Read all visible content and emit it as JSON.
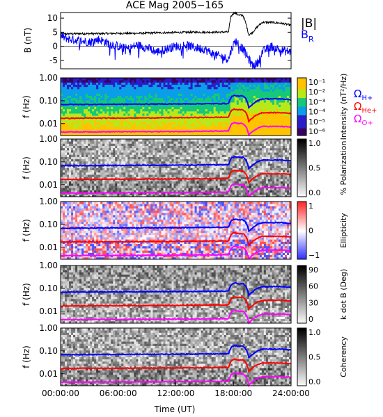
{
  "title": "ACE Mag 2005−165",
  "xlabel": "Time (UT)",
  "x_ticks": [
    "00:00:00",
    "06:00:00",
    "12:00:00",
    "18:00:00",
    "24:00:00"
  ],
  "colors": {
    "B_total": "#000000",
    "B_R": "#0000ff",
    "omega_H": "#0000ff",
    "omega_He": "#ff0000",
    "omega_O": "#ff00ff"
  },
  "chart_data": [
    {
      "type": "line",
      "panel": "magnetic field",
      "ylabel": "B (nT)",
      "ylim": [
        -8,
        12
      ],
      "y_ticks": [
        "10",
        "5",
        "0",
        "-5"
      ],
      "xlim": [
        0,
        24
      ],
      "legend": [
        {
          "name": "|B|",
          "color": "#000000"
        },
        {
          "name": "B",
          "subscript": "R",
          "color": "#0000ff"
        }
      ],
      "series": [
        {
          "name": "|B|",
          "x": [
            0,
            2,
            4,
            6,
            8,
            10,
            12,
            14,
            16,
            17.5,
            17.7,
            18.1,
            18.6,
            19.0,
            19.3,
            19.6,
            20.0,
            20.5,
            21,
            22,
            23,
            24
          ],
          "y": [
            4.4,
            4.5,
            4.5,
            4.6,
            4.6,
            4.8,
            4.9,
            5.0,
            5.0,
            5.1,
            10.5,
            12.0,
            11.0,
            11.0,
            8.0,
            4.0,
            5.0,
            7.0,
            8.5,
            8.5,
            8.2,
            7.5
          ]
        },
        {
          "name": "B_R",
          "x": [
            0,
            1,
            2,
            3,
            4,
            5,
            6,
            7,
            8,
            9,
            10,
            11,
            12,
            13,
            14,
            15,
            16,
            17,
            17.5,
            17.8,
            18.2,
            18.6,
            19.0,
            19.5,
            20.0,
            20.5,
            21,
            22,
            23,
            24
          ],
          "y": [
            3.5,
            2.5,
            2.0,
            1.5,
            2.5,
            1.0,
            0.0,
            -1.0,
            0.5,
            -0.5,
            -2.0,
            -1.0,
            0.0,
            0.5,
            -0.5,
            -1.0,
            -3.0,
            -4.0,
            -4.5,
            -1.0,
            2.0,
            0.5,
            -1.0,
            -4.0,
            -7.0,
            -6.0,
            -2.0,
            0.0,
            -1.5,
            -2.0
          ]
        }
      ]
    },
    {
      "type": "heatmap",
      "panel": "intensity",
      "ylabel": "f (Hz)",
      "y_scale": "log",
      "ylim": [
        0.003,
        1.0
      ],
      "y_ticks": [
        "1.00",
        "0.10",
        "0.01"
      ],
      "colorbar_label": "Intensity (nT²/Hz)",
      "colorbar_ticks": [
        "10⁻¹",
        "10⁻²",
        "10⁻³",
        "10⁻⁴",
        "10⁻⁵",
        "10⁻⁶"
      ],
      "legend": [
        {
          "name": "Ω",
          "subscript": "H+",
          "color": "#0000ff"
        },
        {
          "name": "Ω",
          "subscript": "He+",
          "color": "#ff0000"
        },
        {
          "name": "Ω",
          "subscript": "O+",
          "color": "#ff00ff"
        }
      ]
    },
    {
      "type": "heatmap",
      "panel": "polarization",
      "ylabel": "f (Hz)",
      "y_scale": "log",
      "ylim": [
        0.003,
        1.0
      ],
      "y_ticks": [
        "1.00",
        "0.10",
        "0.01"
      ],
      "colorbar_label": "% Polarization",
      "colorbar_ticks": [
        "1.0",
        "0.5",
        "0.0"
      ]
    },
    {
      "type": "heatmap",
      "panel": "ellipticity",
      "ylabel": "f (Hz)",
      "y_scale": "log",
      "ylim": [
        0.003,
        1.0
      ],
      "y_ticks": [
        "1.00",
        "0.10",
        "0.01"
      ],
      "colorbar_label": "Ellipticity",
      "colorbar_ticks": [
        "1",
        "0",
        "−1"
      ]
    },
    {
      "type": "heatmap",
      "panel": "wave normal angle",
      "ylabel": "f (Hz)",
      "y_scale": "log",
      "ylim": [
        0.003,
        1.0
      ],
      "y_ticks": [
        "1.00",
        "0.10",
        "0.01"
      ],
      "colorbar_label": "k dot B (Deg)",
      "colorbar_ticks": [
        "90",
        "60",
        "30",
        "0"
      ]
    },
    {
      "type": "heatmap",
      "panel": "coherency",
      "ylabel": "f (Hz)",
      "y_scale": "log",
      "ylim": [
        0.003,
        1.0
      ],
      "y_ticks": [
        "1.00",
        "0.10",
        "0.01"
      ],
      "colorbar_label": "Coherency",
      "colorbar_ticks": [
        "1.0",
        "0.5",
        "0.0"
      ]
    },
    {
      "type": "line",
      "panel": "gyrofrequency overlays (drawn on every spectrogram panel)",
      "xlim": [
        0,
        24
      ],
      "y_scale": "log",
      "series": [
        {
          "name": "ΩH+",
          "x": [
            0,
            6,
            12,
            17.5,
            17.8,
            18.1,
            18.5,
            19.0,
            19.3,
            19.6,
            20.0,
            20.5,
            21,
            22,
            23,
            24
          ],
          "y": [
            0.068,
            0.07,
            0.072,
            0.075,
            0.15,
            0.17,
            0.16,
            0.16,
            0.12,
            0.05,
            0.07,
            0.1,
            0.12,
            0.12,
            0.12,
            0.11
          ]
        },
        {
          "name": "ΩHe+",
          "x": [
            0,
            6,
            12,
            17.5,
            17.8,
            18.1,
            18.5,
            19.0,
            19.3,
            19.6,
            20.0,
            20.5,
            21,
            22,
            23,
            24
          ],
          "y": [
            0.017,
            0.0175,
            0.018,
            0.019,
            0.038,
            0.043,
            0.04,
            0.04,
            0.03,
            0.0125,
            0.018,
            0.025,
            0.03,
            0.03,
            0.03,
            0.028
          ]
        },
        {
          "name": "ΩO+",
          "x": [
            0,
            6,
            12,
            17.5,
            17.8,
            18.1,
            18.5,
            19.0,
            19.3,
            19.6,
            20.0,
            20.5,
            21,
            22,
            23,
            24
          ],
          "y": [
            0.0043,
            0.0044,
            0.0045,
            0.0047,
            0.0095,
            0.011,
            0.01,
            0.01,
            0.0075,
            0.0031,
            0.0045,
            0.0062,
            0.0075,
            0.0075,
            0.0075,
            0.007
          ]
        }
      ]
    }
  ]
}
